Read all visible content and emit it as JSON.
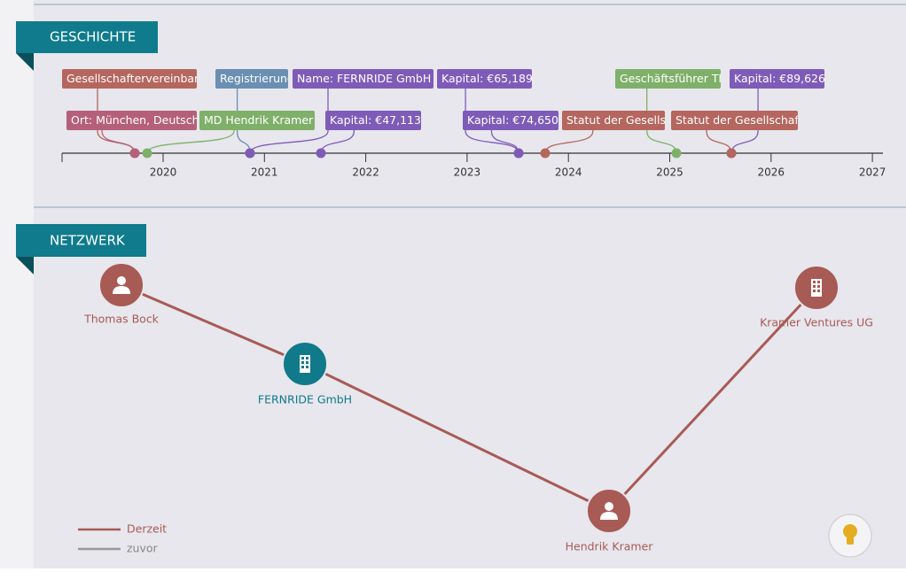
{
  "history": {
    "title": "GESCHICHTE",
    "events": [
      "Gesellschaftervereinbarung",
      "Registrierung",
      "Name: FERNRIDE GmbH",
      "Kapital: €65,189",
      "Geschäftsführer Th",
      "Kapital: €89,626",
      "Ort: München, Deutschl",
      "MD Hendrik Kramer",
      "Kapital: €47,113",
      "Kapital: €74,650",
      "Statut der Gesellscha",
      "Statut der Gesellschaft"
    ],
    "axis_labels": [
      2020,
      2021,
      2022,
      2023,
      2024,
      2025,
      2026,
      2027
    ]
  },
  "network": {
    "title": "NETZWERK",
    "nodes": [
      "Thomas Bock",
      "FERNRIDE GmbH",
      "Hendrik Kramer",
      "Kramer Ventures UG"
    ],
    "legend": [
      "Derzeit",
      "zuvor"
    ]
  }
}
